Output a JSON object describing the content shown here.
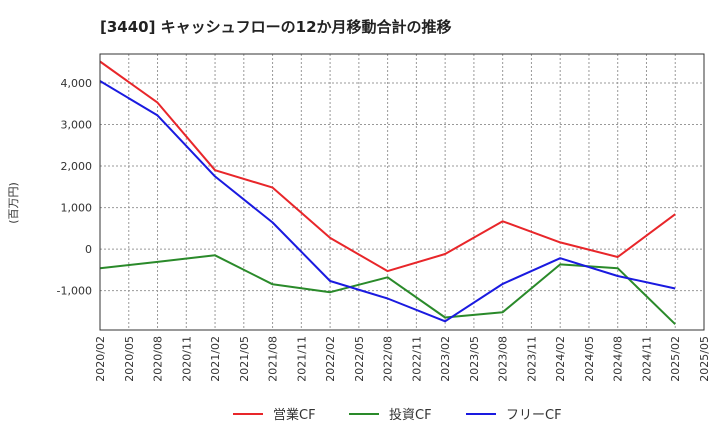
{
  "chart_data": {
    "type": "line",
    "title": "[3440]  キャッシュフローの12か月移動合計の推移",
    "xlabel": "",
    "ylabel": "(百万円)",
    "ylim": [
      -1950,
      4700
    ],
    "yticks": [
      -1000,
      0,
      1000,
      2000,
      3000,
      4000
    ],
    "ytick_labels": [
      "-1,000",
      "0",
      "1,000",
      "2,000",
      "3,000",
      "4,000"
    ],
    "x": [
      "2020/02",
      "2020/05",
      "2020/08",
      "2020/11",
      "2021/02",
      "2021/05",
      "2021/08",
      "2021/11",
      "2022/02",
      "2022/05",
      "2022/08",
      "2022/11",
      "2023/02",
      "2023/05",
      "2023/08",
      "2023/11",
      "2024/02",
      "2024/05",
      "2024/08",
      "2024/11",
      "2025/02",
      "2025/05"
    ],
    "legend_position": "bottom",
    "series": [
      {
        "name": "営業CF",
        "color": "#e8262a",
        "points": [
          [
            "2020/02",
            4520
          ],
          [
            "2020/08",
            3530
          ],
          [
            "2021/02",
            1900
          ],
          [
            "2021/08",
            1480
          ],
          [
            "2022/02",
            270
          ],
          [
            "2022/08",
            -530
          ],
          [
            "2023/02",
            -120
          ],
          [
            "2023/08",
            670
          ],
          [
            "2024/02",
            160
          ],
          [
            "2024/08",
            -190
          ],
          [
            "2025/02",
            840
          ]
        ]
      },
      {
        "name": "投資CF",
        "color": "#2a8a2a",
        "points": [
          [
            "2020/02",
            -460
          ],
          [
            "2020/08",
            -310
          ],
          [
            "2021/02",
            -150
          ],
          [
            "2021/08",
            -850
          ],
          [
            "2022/02",
            -1040
          ],
          [
            "2022/08",
            -680
          ],
          [
            "2023/02",
            -1650
          ],
          [
            "2023/08",
            -1520
          ],
          [
            "2024/02",
            -370
          ],
          [
            "2024/08",
            -460
          ],
          [
            "2025/02",
            -1810
          ]
        ]
      },
      {
        "name": "フリーCF",
        "color": "#1a1ae0",
        "points": [
          [
            "2020/02",
            4050
          ],
          [
            "2020/08",
            3220
          ],
          [
            "2021/02",
            1750
          ],
          [
            "2021/08",
            640
          ],
          [
            "2022/02",
            -770
          ],
          [
            "2022/08",
            -1190
          ],
          [
            "2023/02",
            -1740
          ],
          [
            "2023/08",
            -840
          ],
          [
            "2024/02",
            -220
          ],
          [
            "2024/08",
            -650
          ],
          [
            "2025/02",
            -950
          ]
        ]
      }
    ]
  }
}
